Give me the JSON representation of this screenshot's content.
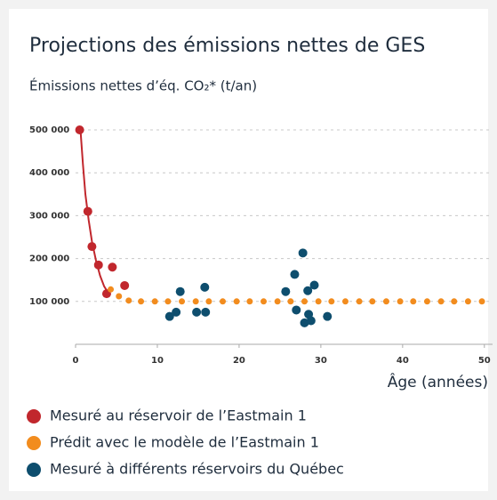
{
  "chart_data": {
    "type": "scatter",
    "title": "Projections des émissions nettes de GES",
    "ylabel": "Émissions nettes d’éq. CO₂* (t/an)",
    "xlabel": "Âge (années)",
    "xlim": [
      0,
      51
    ],
    "ylim": [
      0,
      500000
    ],
    "xticks": [
      0,
      10,
      20,
      30,
      40,
      50
    ],
    "yticks": [
      {
        "value": 100000,
        "label": "100 000"
      },
      {
        "value": 200000,
        "label": "200 000"
      },
      {
        "value": 300000,
        "label": "300 000"
      },
      {
        "value": 400000,
        "label": "400 000"
      },
      {
        "value": 500000,
        "label": "500 000"
      }
    ],
    "grid": true,
    "curve": {
      "color": "#c1272d",
      "x": [
        0.6,
        0.9,
        1.2,
        1.6,
        2,
        2.5,
        3,
        3.5,
        4
      ],
      "values": [
        500000,
        420000,
        350000,
        290000,
        240000,
        195000,
        160000,
        135000,
        120000
      ]
    },
    "series": [
      {
        "name": "Mesuré au réservoir de l’Eastmain 1",
        "color": "#c1272d",
        "x": [
          0.5,
          1.5,
          2,
          2.8,
          3.8,
          4.5,
          6
        ],
        "values": [
          500000,
          310000,
          228000,
          185000,
          118000,
          180000,
          137000
        ]
      },
      {
        "name": "Prédit avec le modèle de l’Eastmain 1",
        "color": "#f28c1e",
        "x": [
          4.3,
          5.3,
          6.5,
          8,
          9.7,
          11.3,
          13,
          14.7,
          16.3,
          18,
          19.7,
          21.3,
          23,
          24.7,
          26.3,
          28,
          29.7,
          31.3,
          33,
          34.7,
          36.3,
          38,
          39.7,
          41.3,
          43,
          44.7,
          46.3,
          48,
          49.7
        ],
        "values": [
          128000,
          112000,
          102000,
          100000,
          100000,
          100000,
          100000,
          100000,
          100000,
          100000,
          100000,
          100000,
          100000,
          100000,
          100000,
          100000,
          100000,
          100000,
          100000,
          100000,
          100000,
          100000,
          100000,
          100000,
          100000,
          100000,
          100000,
          100000,
          100000
        ]
      },
      {
        "name": "Mesuré à différents réservoirs du Québec",
        "color": "#0e4e6e",
        "x": [
          11.5,
          12.3,
          12.8,
          14.8,
          15.8,
          15.9,
          25.7,
          26.8,
          27,
          27.8,
          28,
          28.4,
          28.5,
          28.8,
          29.2,
          30.8
        ],
        "values": [
          65000,
          75000,
          123000,
          75000,
          133000,
          75000,
          123000,
          163000,
          80000,
          213000,
          50000,
          125000,
          70000,
          55000,
          138000,
          65000
        ]
      }
    ]
  }
}
